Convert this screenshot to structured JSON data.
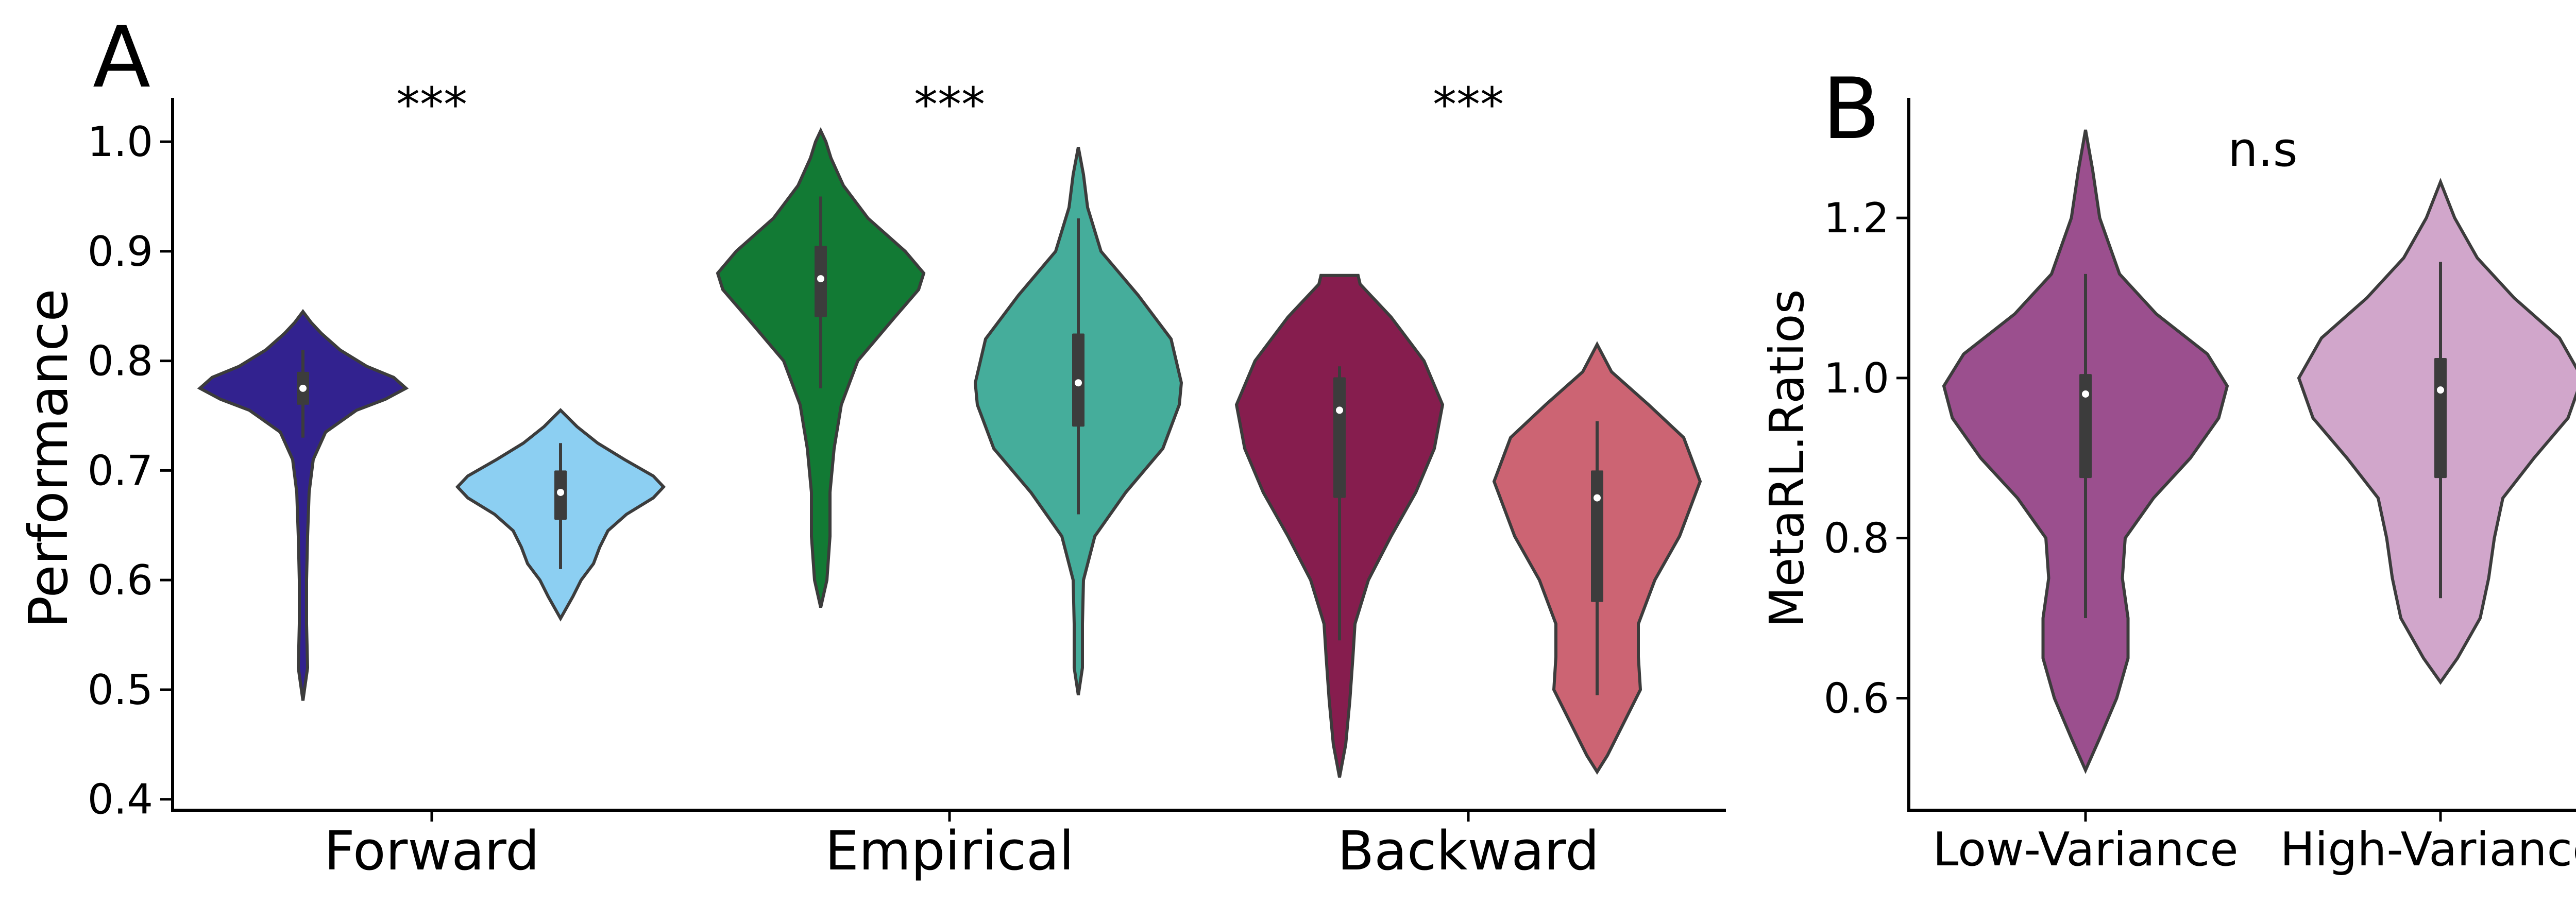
{
  "chart_data": [
    {
      "panel": "A",
      "type": "violin",
      "ylabel": "Performance",
      "ylim": [
        0.39,
        1.04
      ],
      "yticks": [
        "0.4",
        "0.5",
        "0.6",
        "0.7",
        "0.8",
        "0.9",
        "1.0"
      ],
      "categories": [
        "Forward",
        "Empirical",
        "Backward"
      ],
      "significance": [
        "***",
        "***",
        "***"
      ],
      "series": [
        {
          "category": "Forward",
          "color": "#32228f",
          "min": 0.49,
          "max": 0.845,
          "q1": 0.76,
          "median": 0.775,
          "q3": 0.79,
          "whisker_low": 0.73,
          "whisker_high": 0.81,
          "profile": [
            [
              0.49,
              0.0
            ],
            [
              0.52,
              0.045
            ],
            [
              0.56,
              0.035
            ],
            [
              0.6,
              0.035
            ],
            [
              0.64,
              0.045
            ],
            [
              0.68,
              0.06
            ],
            [
              0.71,
              0.1
            ],
            [
              0.735,
              0.22
            ],
            [
              0.755,
              0.52
            ],
            [
              0.765,
              0.8
            ],
            [
              0.775,
              1.0
            ],
            [
              0.785,
              0.88
            ],
            [
              0.795,
              0.62
            ],
            [
              0.81,
              0.36
            ],
            [
              0.825,
              0.18
            ],
            [
              0.835,
              0.08
            ],
            [
              0.845,
              0.0
            ]
          ]
        },
        {
          "category": "Forward",
          "color": "#8ccff2",
          "min": 0.565,
          "max": 0.755,
          "q1": 0.655,
          "median": 0.68,
          "q3": 0.7,
          "whisker_low": 0.61,
          "whisker_high": 0.725,
          "profile": [
            [
              0.565,
              0.0
            ],
            [
              0.585,
              0.12
            ],
            [
              0.6,
              0.2
            ],
            [
              0.615,
              0.32
            ],
            [
              0.63,
              0.38
            ],
            [
              0.645,
              0.46
            ],
            [
              0.66,
              0.64
            ],
            [
              0.675,
              0.9
            ],
            [
              0.685,
              1.0
            ],
            [
              0.695,
              0.9
            ],
            [
              0.71,
              0.62
            ],
            [
              0.725,
              0.36
            ],
            [
              0.74,
              0.16
            ],
            [
              0.755,
              0.0
            ]
          ]
        },
        {
          "category": "Empirical",
          "color": "#127a34",
          "min": 0.575,
          "max": 1.01,
          "q1": 0.84,
          "median": 0.875,
          "q3": 0.905,
          "whisker_low": 0.775,
          "whisker_high": 0.95,
          "profile": [
            [
              0.575,
              0.0
            ],
            [
              0.6,
              0.06
            ],
            [
              0.64,
              0.09
            ],
            [
              0.68,
              0.09
            ],
            [
              0.72,
              0.13
            ],
            [
              0.76,
              0.2
            ],
            [
              0.8,
              0.36
            ],
            [
              0.84,
              0.72
            ],
            [
              0.865,
              0.95
            ],
            [
              0.88,
              1.0
            ],
            [
              0.9,
              0.82
            ],
            [
              0.93,
              0.46
            ],
            [
              0.96,
              0.22
            ],
            [
              0.985,
              0.1
            ],
            [
              1.0,
              0.05
            ],
            [
              1.01,
              0.0
            ]
          ]
        },
        {
          "category": "Empirical",
          "color": "#45ad9b",
          "min": 0.495,
          "max": 0.995,
          "q1": 0.74,
          "median": 0.78,
          "q3": 0.825,
          "whisker_low": 0.66,
          "whisker_high": 0.93,
          "profile": [
            [
              0.495,
              0.0
            ],
            [
              0.52,
              0.04
            ],
            [
              0.56,
              0.04
            ],
            [
              0.6,
              0.05
            ],
            [
              0.64,
              0.16
            ],
            [
              0.68,
              0.46
            ],
            [
              0.72,
              0.82
            ],
            [
              0.76,
              0.98
            ],
            [
              0.78,
              1.0
            ],
            [
              0.82,
              0.9
            ],
            [
              0.86,
              0.58
            ],
            [
              0.9,
              0.22
            ],
            [
              0.94,
              0.09
            ],
            [
              0.97,
              0.05
            ],
            [
              0.995,
              0.0
            ]
          ]
        },
        {
          "category": "Backward",
          "color": "#861d4e",
          "min": 0.42,
          "max": 0.878,
          "q1": 0.675,
          "median": 0.755,
          "q3": 0.785,
          "whisker_low": 0.545,
          "whisker_high": 0.795,
          "profile": [
            [
              0.42,
              0.0
            ],
            [
              0.45,
              0.06
            ],
            [
              0.49,
              0.1
            ],
            [
              0.53,
              0.13
            ],
            [
              0.56,
              0.15
            ],
            [
              0.6,
              0.28
            ],
            [
              0.64,
              0.5
            ],
            [
              0.68,
              0.74
            ],
            [
              0.72,
              0.92
            ],
            [
              0.76,
              1.0
            ],
            [
              0.8,
              0.82
            ],
            [
              0.84,
              0.5
            ],
            [
              0.87,
              0.2
            ],
            [
              0.878,
              0.18
            ]
          ]
        },
        {
          "category": "Backward",
          "color": "#cc6473",
          "min": 0.425,
          "max": 0.815,
          "q1": 0.58,
          "median": 0.675,
          "q3": 0.7,
          "whisker_low": 0.495,
          "whisker_high": 0.745,
          "profile": [
            [
              0.425,
              0.0
            ],
            [
              0.44,
              0.1
            ],
            [
              0.47,
              0.26
            ],
            [
              0.5,
              0.42
            ],
            [
              0.53,
              0.4
            ],
            [
              0.56,
              0.4
            ],
            [
              0.6,
              0.56
            ],
            [
              0.64,
              0.8
            ],
            [
              0.69,
              1.0
            ],
            [
              0.73,
              0.84
            ],
            [
              0.76,
              0.5
            ],
            [
              0.79,
              0.14
            ],
            [
              0.815,
              0.0
            ]
          ]
        }
      ]
    },
    {
      "panel": "B",
      "type": "violin",
      "ylabel": "MetaRL.Ratios",
      "ylim": [
        0.46,
        1.35
      ],
      "yticks": [
        "0.6",
        "0.8",
        "1.0",
        "1.2"
      ],
      "categories": [
        "Low-Variance",
        "High-Variance"
      ],
      "significance": [
        "n.s"
      ],
      "series": [
        {
          "category": "Low-Variance",
          "color": "#9b4f8e",
          "min": 0.51,
          "max": 1.31,
          "q1": 0.875,
          "median": 0.98,
          "q3": 1.005,
          "whisker_low": 0.7,
          "whisker_high": 1.13,
          "profile": [
            [
              0.51,
              0.0
            ],
            [
              0.55,
              0.1
            ],
            [
              0.6,
              0.22
            ],
            [
              0.65,
              0.3
            ],
            [
              0.7,
              0.3
            ],
            [
              0.75,
              0.26
            ],
            [
              0.8,
              0.28
            ],
            [
              0.85,
              0.48
            ],
            [
              0.9,
              0.74
            ],
            [
              0.95,
              0.94
            ],
            [
              0.99,
              1.0
            ],
            [
              1.03,
              0.86
            ],
            [
              1.08,
              0.5
            ],
            [
              1.13,
              0.24
            ],
            [
              1.2,
              0.1
            ],
            [
              1.26,
              0.05
            ],
            [
              1.31,
              0.0
            ]
          ]
        },
        {
          "category": "High-Variance",
          "color": "#d1a6cb",
          "min": 0.62,
          "max": 1.245,
          "q1": 0.875,
          "median": 0.985,
          "q3": 1.025,
          "whisker_low": 0.725,
          "whisker_high": 1.145,
          "profile": [
            [
              0.62,
              0.0
            ],
            [
              0.65,
              0.12
            ],
            [
              0.7,
              0.28
            ],
            [
              0.75,
              0.34
            ],
            [
              0.8,
              0.38
            ],
            [
              0.85,
              0.44
            ],
            [
              0.9,
              0.66
            ],
            [
              0.95,
              0.9
            ],
            [
              1.0,
              1.0
            ],
            [
              1.05,
              0.84
            ],
            [
              1.1,
              0.52
            ],
            [
              1.15,
              0.26
            ],
            [
              1.2,
              0.1
            ],
            [
              1.245,
              0.0
            ]
          ]
        }
      ]
    }
  ]
}
